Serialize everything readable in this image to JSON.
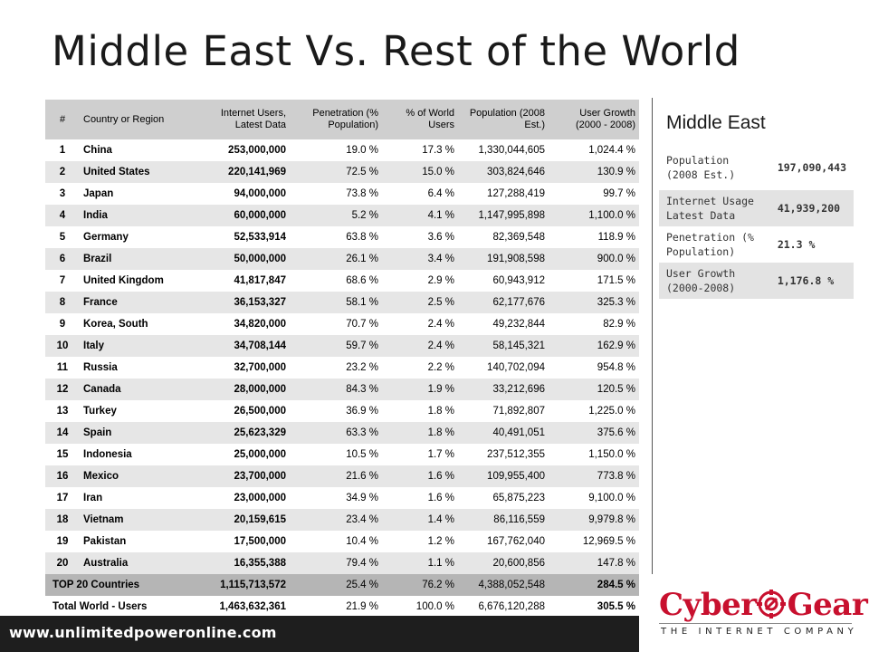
{
  "slide": {
    "title": "Middle East Vs. Rest of the World",
    "footer_url": "www.unlimitedpoweronline.com"
  },
  "table": {
    "headers": {
      "num": "#",
      "country": "Country or Region",
      "users": "Internet Users, Latest Data",
      "penetration": "Penetration (% Population)",
      "world": "% of World Users",
      "population": "Population (2008 Est.)",
      "growth": "User Growth (2000 - 2008)"
    },
    "rows": [
      {
        "num": "1",
        "country": "China",
        "users": "253,000,000",
        "penetration": "19.0 %",
        "world": "17.3 %",
        "population": "1,330,044,605",
        "growth": "1,024.4 %"
      },
      {
        "num": "2",
        "country": "United States",
        "users": "220,141,969",
        "penetration": "72.5 %",
        "world": "15.0 %",
        "population": "303,824,646",
        "growth": "130.9 %"
      },
      {
        "num": "3",
        "country": "Japan",
        "users": "94,000,000",
        "penetration": "73.8 %",
        "world": "6.4 %",
        "population": "127,288,419",
        "growth": "99.7 %"
      },
      {
        "num": "4",
        "country": "India",
        "users": "60,000,000",
        "penetration": "5.2 %",
        "world": "4.1 %",
        "population": "1,147,995,898",
        "growth": "1,100.0 %"
      },
      {
        "num": "5",
        "country": "Germany",
        "users": "52,533,914",
        "penetration": "63.8 %",
        "world": "3.6 %",
        "population": "82,369,548",
        "growth": "118.9 %"
      },
      {
        "num": "6",
        "country": "Brazil",
        "users": "50,000,000",
        "penetration": "26.1 %",
        "world": "3.4 %",
        "population": "191,908,598",
        "growth": "900.0 %"
      },
      {
        "num": "7",
        "country": "United Kingdom",
        "users": "41,817,847",
        "penetration": "68.6 %",
        "world": "2.9 %",
        "population": "60,943,912",
        "growth": "171.5 %"
      },
      {
        "num": "8",
        "country": "France",
        "users": "36,153,327",
        "penetration": "58.1 %",
        "world": "2.5 %",
        "population": "62,177,676",
        "growth": "325.3 %"
      },
      {
        "num": "9",
        "country": "Korea, South",
        "users": "34,820,000",
        "penetration": "70.7 %",
        "world": "2.4 %",
        "population": "49,232,844",
        "growth": "82.9 %"
      },
      {
        "num": "10",
        "country": "Italy",
        "users": "34,708,144",
        "penetration": "59.7 %",
        "world": "2.4 %",
        "population": "58,145,321",
        "growth": "162.9 %"
      },
      {
        "num": "11",
        "country": "Russia",
        "users": "32,700,000",
        "penetration": "23.2 %",
        "world": "2.2 %",
        "population": "140,702,094",
        "growth": "954.8 %"
      },
      {
        "num": "12",
        "country": "Canada",
        "users": "28,000,000",
        "penetration": "84.3 %",
        "world": "1.9 %",
        "population": "33,212,696",
        "growth": "120.5 %"
      },
      {
        "num": "13",
        "country": "Turkey",
        "users": "26,500,000",
        "penetration": "36.9 %",
        "world": "1.8 %",
        "population": "71,892,807",
        "growth": "1,225.0 %"
      },
      {
        "num": "14",
        "country": "Spain",
        "users": "25,623,329",
        "penetration": "63.3 %",
        "world": "1.8 %",
        "population": "40,491,051",
        "growth": "375.6 %"
      },
      {
        "num": "15",
        "country": "Indonesia",
        "users": "25,000,000",
        "penetration": "10.5 %",
        "world": "1.7 %",
        "population": "237,512,355",
        "growth": "1,150.0 %"
      },
      {
        "num": "16",
        "country": "Mexico",
        "users": "23,700,000",
        "penetration": "21.6 %",
        "world": "1.6 %",
        "population": "109,955,400",
        "growth": "773.8 %"
      },
      {
        "num": "17",
        "country": "Iran",
        "users": "23,000,000",
        "penetration": "34.9 %",
        "world": "1.6 %",
        "population": "65,875,223",
        "growth": "9,100.0 %"
      },
      {
        "num": "18",
        "country": "Vietnam",
        "users": "20,159,615",
        "penetration": "23.4 %",
        "world": "1.4 %",
        "population": "86,116,559",
        "growth": "9,979.8 %"
      },
      {
        "num": "19",
        "country": "Pakistan",
        "users": "17,500,000",
        "penetration": "10.4 %",
        "world": "1.2 %",
        "population": "167,762,040",
        "growth": "12,969.5 %"
      },
      {
        "num": "20",
        "country": "Australia",
        "users": "16,355,388",
        "penetration": "79.4 %",
        "world": "1.1 %",
        "population": "20,600,856",
        "growth": "147.8 %"
      }
    ],
    "top20": {
      "label": "TOP 20 Countries",
      "users": "1,115,713,572",
      "penetration": "25.4 %",
      "world": "76.2 %",
      "population": "4,388,052,548",
      "growth": "284.5 %"
    },
    "total": {
      "label": "Total World - Users",
      "users": "1,463,632,361",
      "penetration": "21.9 %",
      "world": "100.0 %",
      "population": "6,676,120,288",
      "growth": "305.5 %"
    }
  },
  "middle_east": {
    "title": "Middle East",
    "rows": [
      {
        "label": "Population (2008 Est.)",
        "value": "197,090,443"
      },
      {
        "label": "Internet Usage Latest Data",
        "value": "41,939,200"
      },
      {
        "label": "Penetration (% Population)",
        "value": "21.3 %"
      },
      {
        "label": "User Growth (2000-2008)",
        "value": "1,176.8 %"
      }
    ]
  },
  "logo": {
    "word_left": "Cyber",
    "word_right": "Gear",
    "tagline": "THE INTERNET COMPANY",
    "brand_color": "#c8102e"
  },
  "colors": {
    "header_bg": "#cfcfcf",
    "row_alt_bg": "#e6e6e6",
    "top20_bg": "#b5b5b5",
    "footer_bg": "#1e1e1e"
  }
}
